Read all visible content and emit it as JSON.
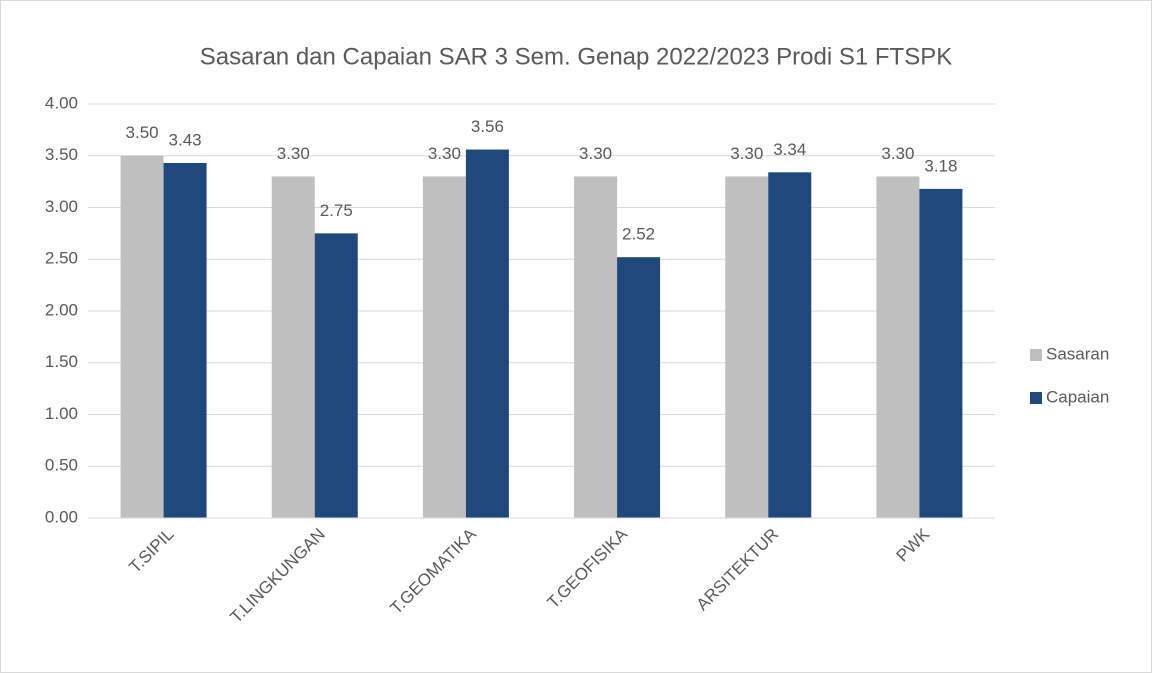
{
  "chart_data": {
    "type": "bar",
    "title": "Sasaran dan Capaian SAR 3 Sem. Genap 2022/2023 Prodi S1 FTSPK",
    "categories": [
      "T.SIPIL",
      "T.LINGKUNGAN",
      "T.GEOMATIKA",
      "T.GEOFISIKA",
      "ARSITEKTUR",
      "PWK"
    ],
    "series": [
      {
        "name": "Sasaran",
        "color": "#bfbfbf",
        "values": [
          3.5,
          3.3,
          3.3,
          3.3,
          3.3,
          3.3
        ],
        "value_labels": [
          "3.50",
          "3.30",
          "3.30",
          "3.30",
          "3.30",
          "3.30"
        ]
      },
      {
        "name": "Capaian",
        "color": "#1f497d",
        "values": [
          3.43,
          2.75,
          3.56,
          2.52,
          3.34,
          3.18
        ],
        "value_labels": [
          "3.43",
          "2.75",
          "3.56",
          "2.52",
          "3.34",
          "3.18"
        ]
      }
    ],
    "ylim": [
      0,
      4
    ],
    "yticks": [
      {
        "value": 0,
        "label": "0.00"
      },
      {
        "value": 0.5,
        "label": "0.50"
      },
      {
        "value": 1,
        "label": "1.00"
      },
      {
        "value": 1.5,
        "label": "1.50"
      },
      {
        "value": 2,
        "label": "2.00"
      },
      {
        "value": 2.5,
        "label": "2.50"
      },
      {
        "value": 3,
        "label": "3.00"
      },
      {
        "value": 3.5,
        "label": "3.50"
      },
      {
        "value": 4,
        "label": "4.00"
      }
    ],
    "grid": true,
    "legend": "right"
  }
}
